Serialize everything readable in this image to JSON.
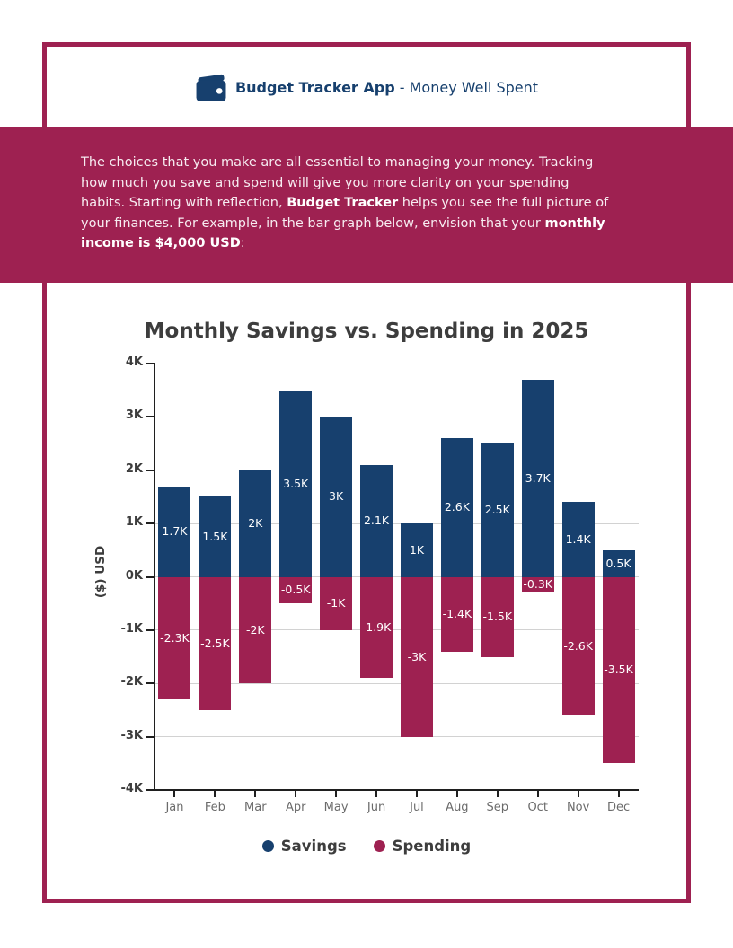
{
  "header": {
    "app_name": "Budget Tracker App",
    "separator": " - ",
    "tagline": "Money Well Spent"
  },
  "banner": {
    "seg1": "The choices that you make are all essential to managing your money. Tracking\nhow much you save and spend will give you more clarity on your spending\nhabits. Starting with reflection, ",
    "bold1": "Budget Tracker",
    "seg2": " helps you see the full picture of\nyour finances. For example, in the bar graph below, envision that your ",
    "bold2": "monthly\nincome is $4,000 USD",
    "seg3": ":"
  },
  "colors": {
    "maroon": "#9E2151",
    "navy": "#17406E",
    "title_text": "#3D3D3D",
    "axis": "#1F1F1F",
    "grid": "#D2D2D2",
    "month_label": "#6B6B6B",
    "banner_text": "#F7ECF1",
    "bar_label": "#FFFFFF"
  },
  "chart_data": {
    "type": "bar",
    "title": "Monthly Savings vs. Spending in 2025",
    "ylabel": "($) USD",
    "categories": [
      "Jan",
      "Feb",
      "Mar",
      "Apr",
      "May",
      "Jun",
      "Jul",
      "Aug",
      "Sep",
      "Oct",
      "Nov",
      "Dec"
    ],
    "series": [
      {
        "name": "Savings",
        "color": "#17406E",
        "values": [
          1700,
          1500,
          2000,
          3500,
          3000,
          2100,
          1000,
          2600,
          2500,
          3700,
          1400,
          500
        ],
        "labels": [
          "1.7K",
          "1.5K",
          "2K",
          "3.5K",
          "3K",
          "2.1K",
          "1K",
          "2.6K",
          "2.5K",
          "3.7K",
          "1.4K",
          "0.5K"
        ]
      },
      {
        "name": "Spending",
        "color": "#9E2151",
        "values": [
          -2300,
          -2500,
          -2000,
          -500,
          -1000,
          -1900,
          -3000,
          -1400,
          -1500,
          -300,
          -2600,
          -3500
        ],
        "labels": [
          "-2.3K",
          "-2.5K",
          "-2K",
          "-0.5K",
          "-1K",
          "-1.9K",
          "-3K",
          "-1.4K",
          "-1.5K",
          "-0.3K",
          "-2.6K",
          "-3.5K"
        ]
      }
    ],
    "ylim": [
      -4000,
      4000
    ],
    "yticks": [
      {
        "label": "4K",
        "value": 4000
      },
      {
        "label": "3K",
        "value": 3000
      },
      {
        "label": "2K",
        "value": 2000
      },
      {
        "label": "1K",
        "value": 1000
      },
      {
        "label": "0K",
        "value": 0
      },
      {
        "label": "-1K",
        "value": -1000
      },
      {
        "label": "-2K",
        "value": -2000
      },
      {
        "label": "-3K",
        "value": -3000
      },
      {
        "label": "-4K",
        "value": -4000
      }
    ],
    "grid": true,
    "legend_position": "bottom"
  }
}
